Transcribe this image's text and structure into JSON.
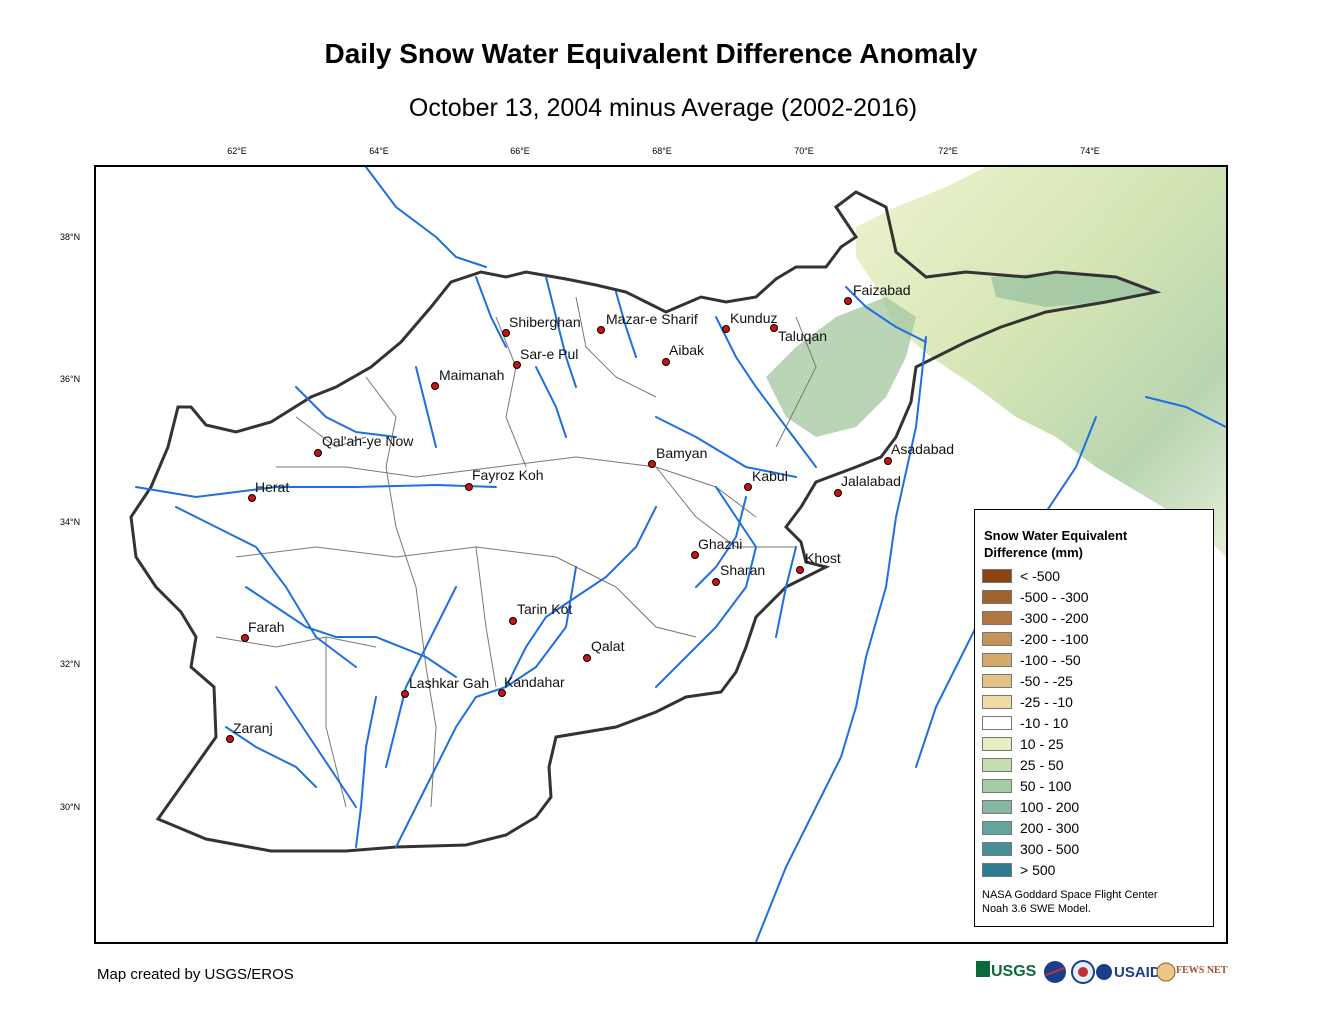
{
  "title": "Daily Snow Water Equivalent Difference Anomaly",
  "subtitle": "October 13, 2004 minus Average (2002-2016)",
  "longitude_ticks": [
    "62°E",
    "64°E",
    "66°E",
    "68°E",
    "70°E",
    "72°E",
    "74°E"
  ],
  "latitude_ticks": [
    "38°N",
    "36°N",
    "34°N",
    "32°N",
    "30°N"
  ],
  "cities": [
    "Faizabad",
    "Shiberghan",
    "Mazar-e Sharif",
    "Kunduz",
    "Taluqan",
    "Sar-e Pul",
    "Aibak",
    "Maimanah",
    "Qal'ah-ye Now",
    "Bamyan",
    "Asadabad",
    "Kabul",
    "Jalalabad",
    "Fayroz Koh",
    "Herat",
    "Ghazni",
    "Khost",
    "Sharan",
    "Tarin Kot",
    "Farah",
    "Qalat",
    "Lashkar Gah",
    "Kandahar",
    "Zaranj"
  ],
  "legend": {
    "title_line1": "Snow Water Equivalent",
    "title_line2": "Difference (mm)",
    "items": [
      {
        "label": "< -500",
        "color": "#8b4513"
      },
      {
        "label": "-500 - -300",
        "color": "#a0622d"
      },
      {
        "label": "-300 - -200",
        "color": "#b07840"
      },
      {
        "label": "-200 - -100",
        "color": "#c4935a"
      },
      {
        "label": "-100 - -50",
        "color": "#d4a96c"
      },
      {
        "label": "-50 - -25",
        "color": "#e3c286"
      },
      {
        "label": "-25 - -10",
        "color": "#f0dba4"
      },
      {
        "label": "-10 - 10",
        "color": "#ffffff"
      },
      {
        "label": "10 - 25",
        "color": "#e6efc4"
      },
      {
        "label": "25 - 50",
        "color": "#c5deb0"
      },
      {
        "label": "50 - 100",
        "color": "#a5cba5"
      },
      {
        "label": "100 - 200",
        "color": "#85b7a2"
      },
      {
        "label": "200 - 300",
        "color": "#65a39e"
      },
      {
        "label": "300 - 500",
        "color": "#488f98"
      },
      {
        "label": "> 500",
        "color": "#2e7a92"
      }
    ],
    "credit_line1": "NASA Goddard Space Flight Center",
    "credit_line2": "Noah 3.6 SWE Model."
  },
  "credit": "Map created by USGS/EROS",
  "logos": {
    "usgs": "USGS",
    "nasa": "NASA",
    "usaid": "USAID",
    "fewsnet": "FEWS NET"
  }
}
